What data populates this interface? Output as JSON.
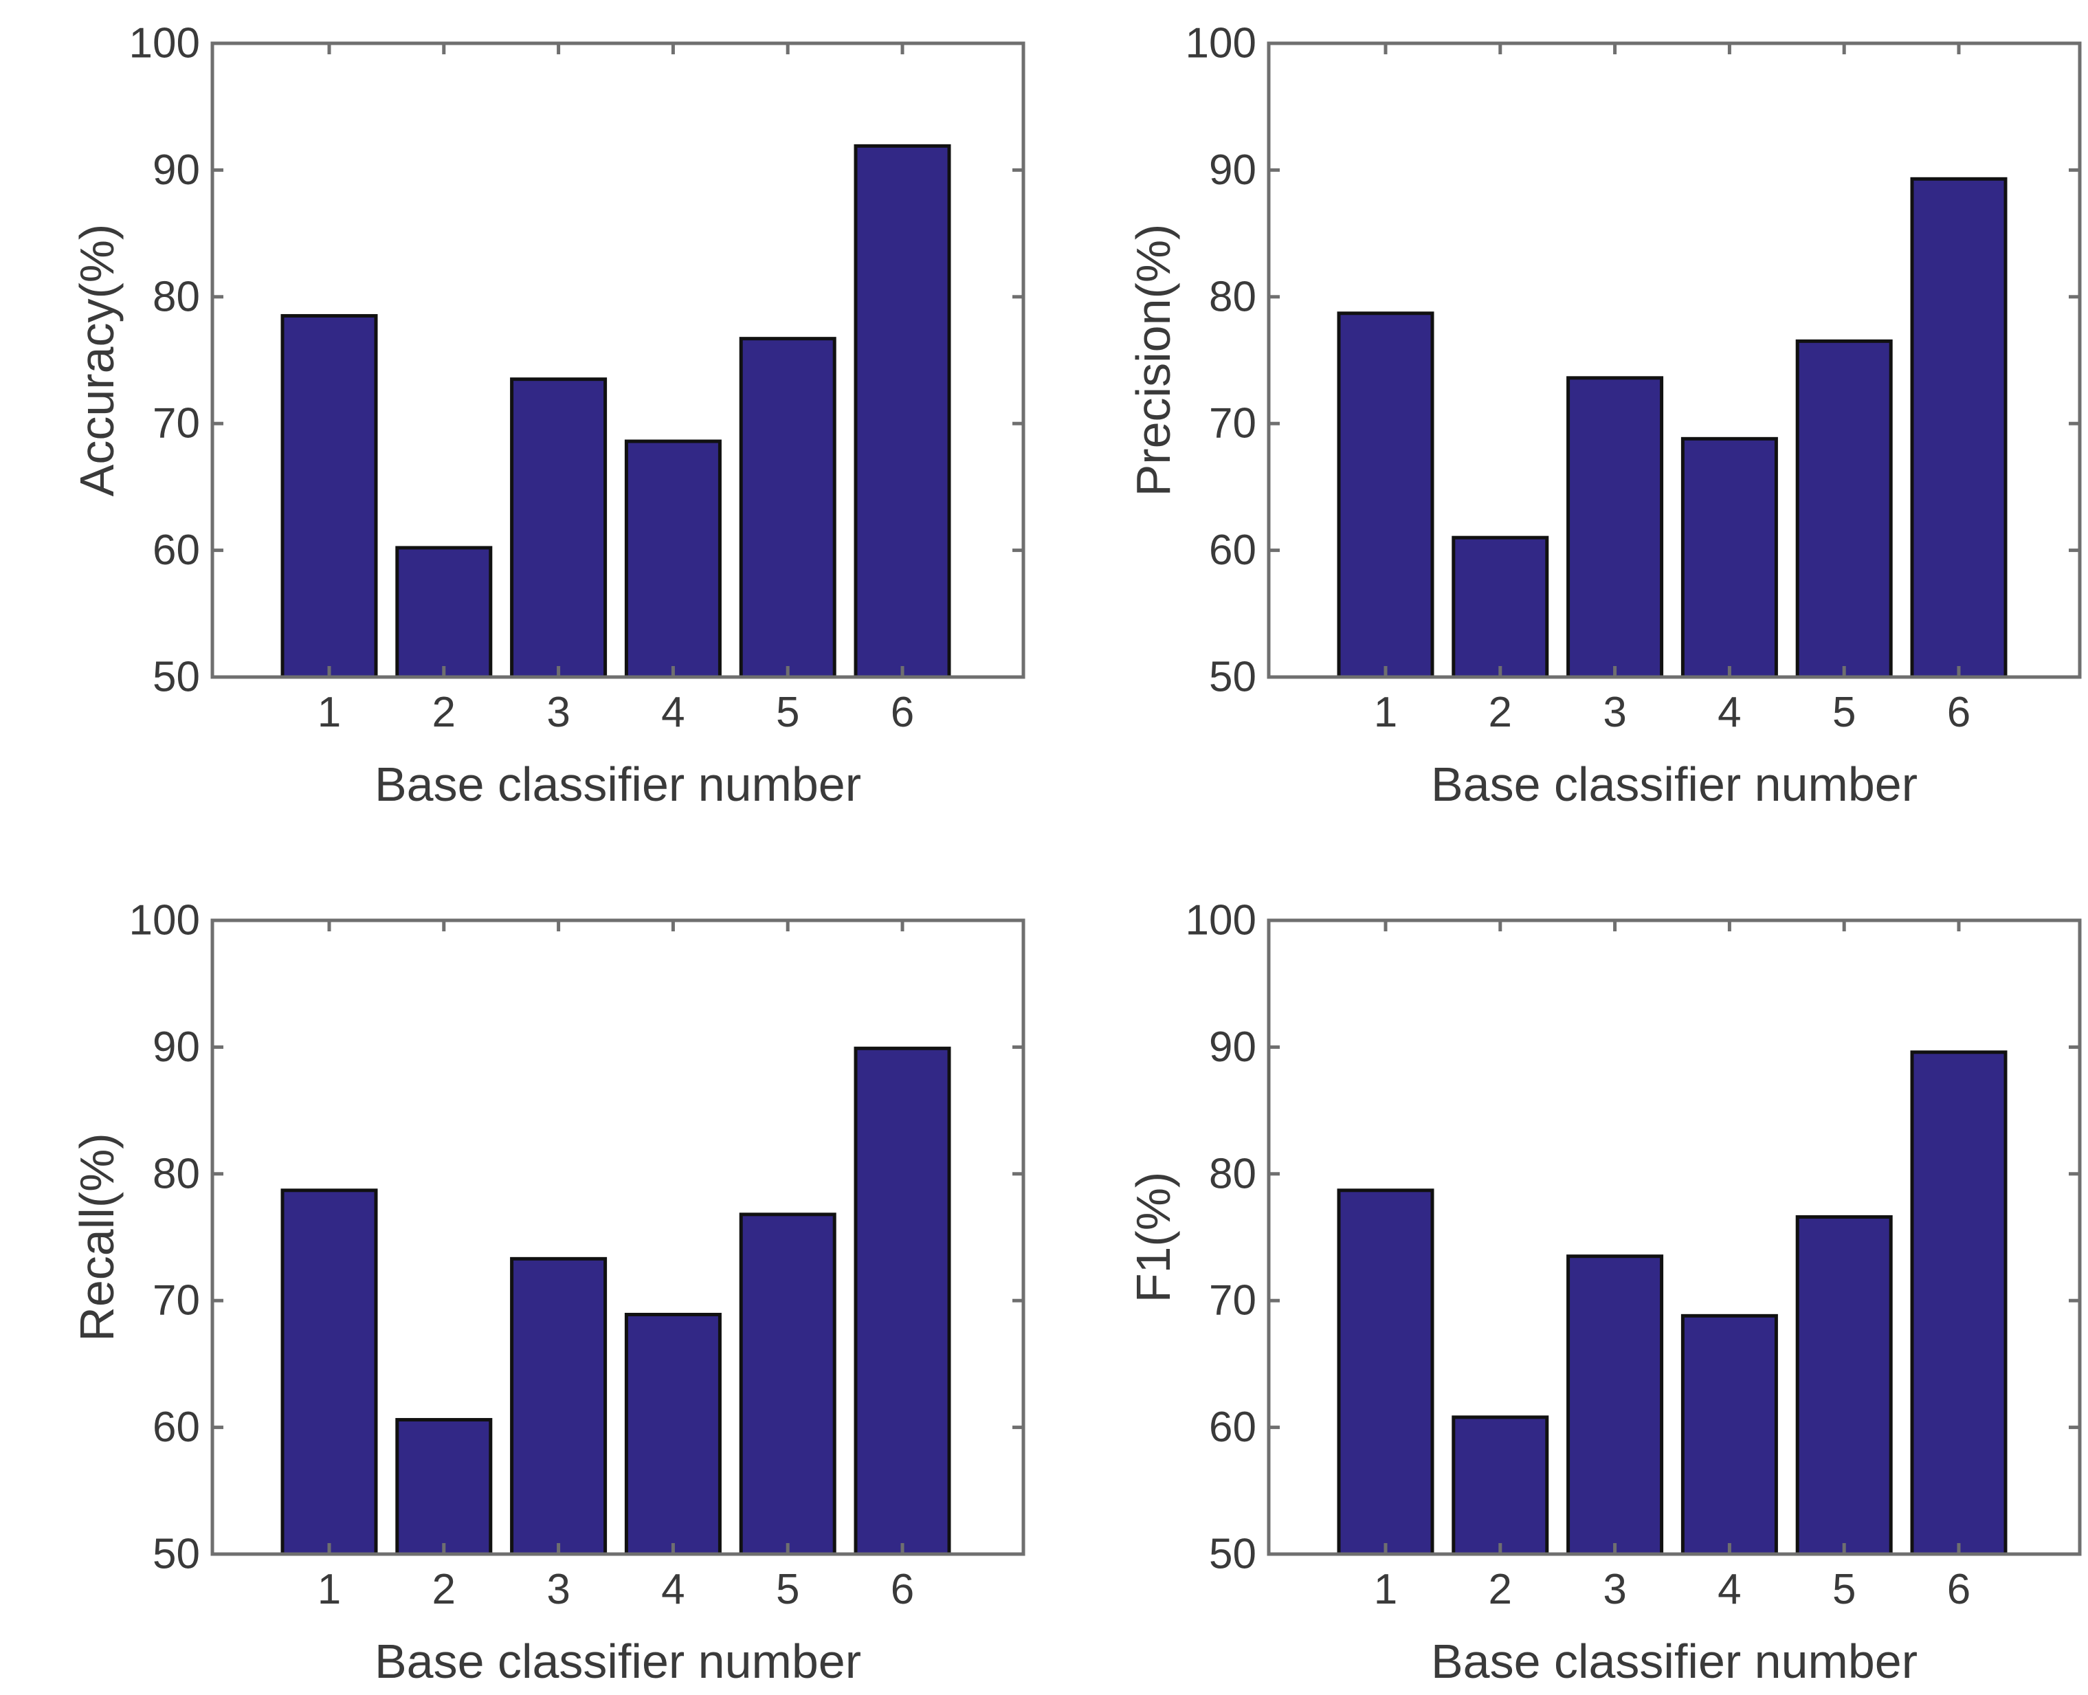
{
  "figure": {
    "bar_color": "#322886",
    "frame_color": "#6f6f6f",
    "text_color": "#3a3a3a"
  },
  "chart_data": [
    {
      "type": "bar",
      "ylabel": "Accuracy(%)",
      "xlabel": "Base classifier number",
      "categories": [
        "1",
        "2",
        "3",
        "4",
        "5",
        "6"
      ],
      "values": [
        78.5,
        60.2,
        73.5,
        68.6,
        76.7,
        91.9
      ],
      "ylim": [
        50,
        100
      ],
      "yticks": [
        "50",
        "60",
        "70",
        "80",
        "90",
        "100"
      ],
      "grid": false
    },
    {
      "type": "bar",
      "ylabel": "Precision(%)",
      "xlabel": "Base classifier number",
      "categories": [
        "1",
        "2",
        "3",
        "4",
        "5",
        "6"
      ],
      "values": [
        78.7,
        61.0,
        73.6,
        68.8,
        76.5,
        89.3
      ],
      "ylim": [
        50,
        100
      ],
      "yticks": [
        "50",
        "60",
        "70",
        "80",
        "90",
        "100"
      ],
      "grid": false
    },
    {
      "type": "bar",
      "ylabel": "Recall(%)",
      "xlabel": "Base classifier number",
      "categories": [
        "1",
        "2",
        "3",
        "4",
        "5",
        "6"
      ],
      "values": [
        78.7,
        60.6,
        73.3,
        68.9,
        76.8,
        89.9
      ],
      "ylim": [
        50,
        100
      ],
      "yticks": [
        "50",
        "60",
        "70",
        "80",
        "90",
        "100"
      ],
      "grid": false
    },
    {
      "type": "bar",
      "ylabel": "F1(%)",
      "xlabel": "Base classifier number",
      "categories": [
        "1",
        "2",
        "3",
        "4",
        "5",
        "6"
      ],
      "values": [
        78.7,
        60.8,
        73.5,
        68.8,
        76.6,
        89.6
      ],
      "ylim": [
        50,
        100
      ],
      "yticks": [
        "50",
        "60",
        "70",
        "80",
        "90",
        "100"
      ],
      "grid": false
    }
  ]
}
